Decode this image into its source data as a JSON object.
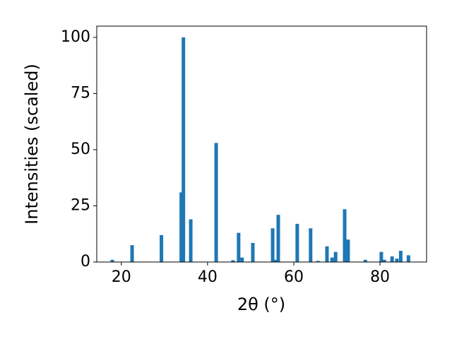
{
  "chart_data": {
    "type": "bar",
    "xlabel": "2θ (°)",
    "ylabel": "Intensities (scaled)",
    "x": [
      17.9,
      22.5,
      29.3,
      33.9,
      34.4,
      36.1,
      42.0,
      45.9,
      47.2,
      48.0,
      50.5,
      55.1,
      55.7,
      56.4,
      60.8,
      63.9,
      65.6,
      67.7,
      68.9,
      69.7,
      71.8,
      72.6,
      76.6,
      80.3,
      81.0,
      82.8,
      83.9,
      84.8,
      86.6
    ],
    "values": [
      1,
      7.5,
      12,
      31,
      100,
      19,
      53,
      0.8,
      13,
      2,
      8.5,
      15,
      1,
      21,
      17,
      15,
      0.5,
      7,
      2,
      4.5,
      23.5,
      10,
      1,
      4.5,
      1,
      2.5,
      1.5,
      5,
      3
    ],
    "color": "#1f77b4",
    "xlim": [
      14.3,
      90.8
    ],
    "xticks": [
      20,
      40,
      60,
      80
    ],
    "ylim": [
      0,
      105
    ],
    "yticks": [
      0,
      25,
      50,
      75,
      100
    ]
  }
}
